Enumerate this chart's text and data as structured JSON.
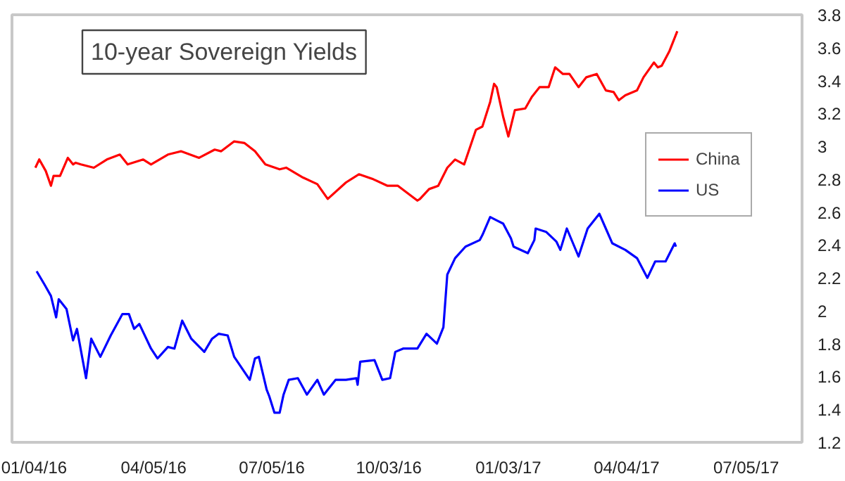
{
  "chart_data": {
    "type": "line",
    "title": "10-year Sovereign Yields",
    "series": [
      {
        "name": "China",
        "color": "#ff0000",
        "x": [
          "2016-01-05",
          "2016-01-08",
          "2016-01-13",
          "2016-01-17",
          "2016-01-19",
          "2016-01-24",
          "2016-01-30",
          "2016-02-03",
          "2016-02-05",
          "2016-02-09",
          "2016-02-19",
          "2016-02-29",
          "2016-03-10",
          "2016-03-16",
          "2016-03-28",
          "2016-04-03",
          "2016-04-16",
          "2016-04-26",
          "2016-05-10",
          "2016-05-22",
          "2016-05-27",
          "2016-06-06",
          "2016-06-14",
          "2016-06-22",
          "2016-06-30",
          "2016-07-11",
          "2016-07-16",
          "2016-07-29",
          "2016-08-09",
          "2016-08-17",
          "2016-08-31",
          "2016-09-10",
          "2016-09-21",
          "2016-10-02",
          "2016-10-10",
          "2016-10-25",
          "2016-10-27",
          "2016-11-03",
          "2016-11-10",
          "2016-11-17",
          "2016-11-23",
          "2016-11-30",
          "2016-12-09",
          "2016-12-14",
          "2016-12-20",
          "2016-12-23",
          "2016-12-25",
          "2016-12-30",
          "2017-01-03",
          "2017-01-08",
          "2017-01-16",
          "2017-01-21",
          "2017-01-27",
          "2017-02-03",
          "2017-02-08",
          "2017-02-14",
          "2017-02-19",
          "2017-02-26",
          "2017-03-04",
          "2017-03-12",
          "2017-03-19",
          "2017-03-25",
          "2017-03-29",
          "2017-04-03",
          "2017-04-12",
          "2017-04-17",
          "2017-04-25",
          "2017-04-28",
          "2017-05-01",
          "2017-05-07",
          "2017-05-13"
        ],
        "values": [
          2.87,
          2.92,
          2.85,
          2.76,
          2.82,
          2.82,
          2.93,
          2.89,
          2.9,
          2.89,
          2.87,
          2.92,
          2.95,
          2.89,
          2.92,
          2.89,
          2.95,
          2.97,
          2.93,
          2.98,
          2.97,
          3.03,
          3.02,
          2.97,
          2.89,
          2.86,
          2.87,
          2.81,
          2.77,
          2.68,
          2.78,
          2.83,
          2.8,
          2.76,
          2.76,
          2.67,
          2.68,
          2.74,
          2.76,
          2.87,
          2.92,
          2.89,
          3.1,
          3.12,
          3.27,
          3.38,
          3.36,
          3.18,
          3.06,
          3.22,
          3.23,
          3.3,
          3.36,
          3.36,
          3.48,
          3.44,
          3.44,
          3.36,
          3.42,
          3.44,
          3.34,
          3.33,
          3.28,
          3.31,
          3.34,
          3.42,
          3.51,
          3.48,
          3.49,
          3.58,
          3.7
        ]
      },
      {
        "name": "US",
        "color": "#0000ff",
        "x": [
          "2016-01-06",
          "2016-01-12",
          "2016-01-17",
          "2016-01-21",
          "2016-01-23",
          "2016-01-29",
          "2016-02-03",
          "2016-02-06",
          "2016-02-13",
          "2016-02-17",
          "2016-02-24",
          "2016-03-03",
          "2016-03-12",
          "2016-03-17",
          "2016-03-21",
          "2016-03-25",
          "2016-04-03",
          "2016-04-08",
          "2016-04-16",
          "2016-04-21",
          "2016-04-27",
          "2016-05-04",
          "2016-05-14",
          "2016-05-20",
          "2016-05-25",
          "2016-06-01",
          "2016-06-06",
          "2016-06-18",
          "2016-06-22",
          "2016-06-25",
          "2016-07-01",
          "2016-07-03",
          "2016-07-07",
          "2016-07-11",
          "2016-07-14",
          "2016-07-18",
          "2016-07-25",
          "2016-08-01",
          "2016-08-09",
          "2016-08-14",
          "2016-08-23",
          "2016-08-31",
          "2016-09-08",
          "2016-09-09",
          "2016-09-11",
          "2016-09-22",
          "2016-09-28",
          "2016-10-04",
          "2016-10-08",
          "2016-10-14",
          "2016-10-25",
          "2016-11-01",
          "2016-11-09",
          "2016-11-14",
          "2016-11-17",
          "2016-11-23",
          "2016-12-01",
          "2016-12-12",
          "2016-12-14",
          "2016-12-20",
          "2016-12-25",
          "2016-12-30",
          "2017-01-05",
          "2017-01-07",
          "2017-01-18",
          "2017-01-23",
          "2017-01-24",
          "2017-02-01",
          "2017-02-09",
          "2017-02-12",
          "2017-02-17",
          "2017-02-26",
          "2017-03-05",
          "2017-03-14",
          "2017-03-19",
          "2017-03-24",
          "2017-04-03",
          "2017-04-12",
          "2017-04-20",
          "2017-04-26",
          "2017-05-04",
          "2017-05-11",
          "2017-05-12"
        ],
        "values": [
          2.24,
          2.16,
          2.09,
          1.96,
          2.07,
          2.01,
          1.82,
          1.89,
          1.59,
          1.83,
          1.72,
          1.85,
          1.98,
          1.98,
          1.89,
          1.92,
          1.77,
          1.71,
          1.78,
          1.77,
          1.94,
          1.83,
          1.75,
          1.83,
          1.86,
          1.85,
          1.72,
          1.58,
          1.71,
          1.72,
          1.52,
          1.48,
          1.38,
          1.38,
          1.49,
          1.58,
          1.59,
          1.49,
          1.58,
          1.49,
          1.58,
          1.58,
          1.59,
          1.55,
          1.69,
          1.7,
          1.58,
          1.59,
          1.75,
          1.77,
          1.77,
          1.86,
          1.8,
          1.9,
          2.22,
          2.32,
          2.39,
          2.43,
          2.46,
          2.57,
          2.55,
          2.53,
          2.44,
          2.39,
          2.35,
          2.43,
          2.5,
          2.48,
          2.42,
          2.37,
          2.5,
          2.33,
          2.5,
          2.59,
          2.5,
          2.41,
          2.37,
          2.32,
          2.2,
          2.3,
          2.3,
          2.41,
          2.39
        ]
      }
    ],
    "xlim": [
      "2015-12-18",
      "2017-08-17"
    ],
    "xticks": [
      {
        "value": "2016-01-04",
        "label": "01/04/16"
      },
      {
        "value": "2016-04-05",
        "label": "04/05/16"
      },
      {
        "value": "2016-07-05",
        "label": "07/05/16"
      },
      {
        "value": "2016-10-03",
        "label": "10/03/16"
      },
      {
        "value": "2017-01-03",
        "label": "01/03/17"
      },
      {
        "value": "2017-04-04",
        "label": "04/04/17"
      },
      {
        "value": "2017-07-05",
        "label": "07/05/17"
      }
    ],
    "ylim": [
      1.2,
      3.8
    ],
    "yticks": [
      1.2,
      1.4,
      1.6,
      1.8,
      2,
      2.2,
      2.4,
      2.6,
      2.8,
      3,
      3.2,
      3.4,
      3.6,
      3.8
    ],
    "grid": false,
    "legend": "right",
    "line_style": "solid"
  }
}
